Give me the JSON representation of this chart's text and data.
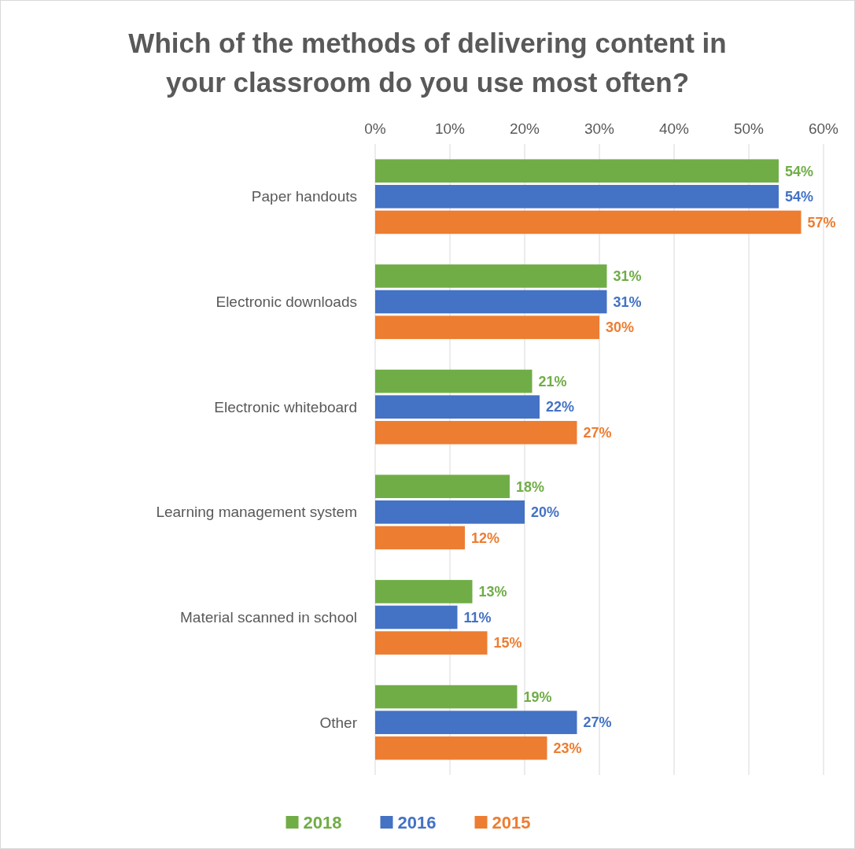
{
  "chart_data": {
    "type": "bar",
    "orientation": "horizontal",
    "title": "Which of the methods of delivering content in your classroom do you use most often?",
    "categories": [
      "Paper handouts",
      "Electronic downloads",
      "Electronic whiteboard",
      "Learning management system",
      "Material scanned in school",
      "Other"
    ],
    "series": [
      {
        "name": "2018",
        "color": "#70ad47",
        "values": [
          54,
          31,
          21,
          18,
          13,
          19
        ],
        "value_labels": [
          "54%",
          "31%",
          "21%",
          "18%",
          "13%",
          "19%"
        ]
      },
      {
        "name": "2016",
        "color": "#4472c4",
        "values": [
          54,
          31,
          22,
          20,
          11,
          27
        ],
        "value_labels": [
          "54%",
          "31%",
          "22%",
          "20%",
          "11%",
          "27%"
        ]
      },
      {
        "name": "2015",
        "color": "#ed7d31",
        "values": [
          57,
          30,
          27,
          12,
          15,
          23
        ],
        "value_labels": [
          "57%",
          "30%",
          "27%",
          "12%",
          "15%",
          "23%"
        ]
      }
    ],
    "xlim": [
      0,
      60
    ],
    "xticks": [
      {
        "value": 0,
        "label": "0%"
      },
      {
        "value": 10,
        "label": "10%"
      },
      {
        "value": 20,
        "label": "20%"
      },
      {
        "value": 30,
        "label": "30%"
      },
      {
        "value": 40,
        "label": "40%"
      },
      {
        "value": 50,
        "label": "50%"
      },
      {
        "value": 60,
        "label": "60%"
      }
    ],
    "grid": "x",
    "legend": "bottom"
  }
}
